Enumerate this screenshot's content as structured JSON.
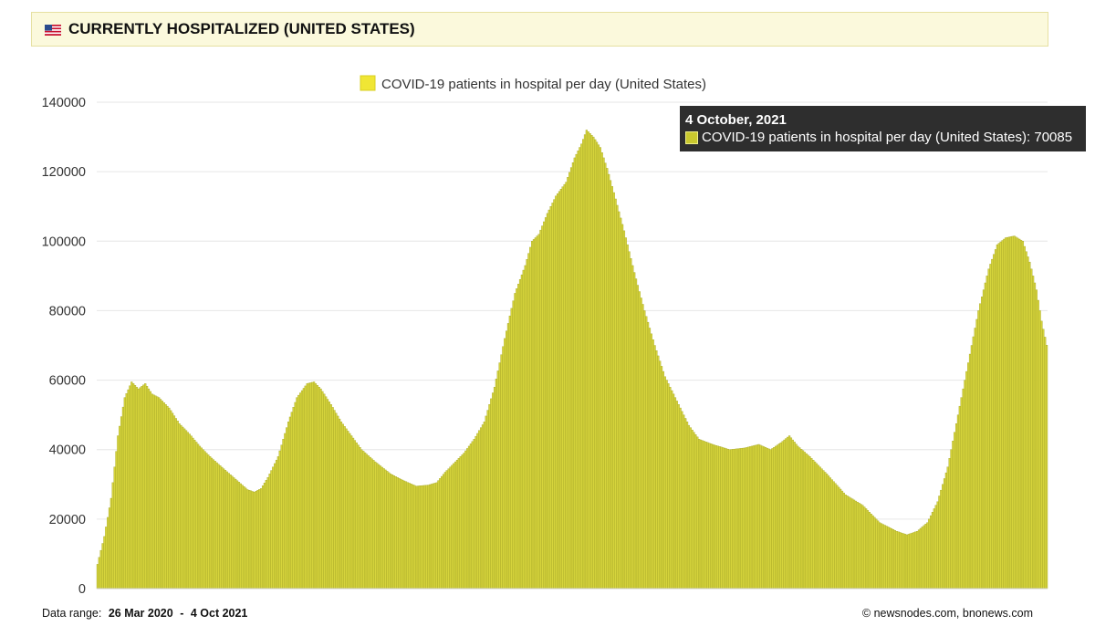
{
  "header": {
    "title": "CURRENTLY HOSPITALIZED (UNITED STATES)",
    "flag_icon": "us-flag-icon"
  },
  "tooltip": {
    "date": "4 October, 2021",
    "series": "COVID-19 patients in hospital per day (United States)",
    "value": "70085"
  },
  "footer": {
    "range_label": "Data range:",
    "range_start": "26 Mar 2020",
    "range_sep": "-",
    "range_end": "4 Oct 2021",
    "copyright": "©  newsnodes.com, bnonews.com"
  },
  "colors": {
    "bar_fill": "#d6d43c",
    "bar_stroke": "#9fa020",
    "legend_swatch": "#f0e634",
    "grid": "#e6e6e6",
    "tooltip_bg": "#2e2e2e"
  },
  "chart_data": {
    "type": "bar",
    "title": "",
    "legend": [
      "COVID-19 patients in hospital per day (United States)"
    ],
    "legend_position": "top-center",
    "grid": true,
    "xlabel": "",
    "ylabel": "",
    "x_start": "2020-03-26",
    "x_end": "2021-10-04",
    "ylim": [
      0,
      140000
    ],
    "yticks": [
      "0",
      "20000",
      "40000",
      "60000",
      "80000",
      "100000",
      "120000",
      "140000"
    ],
    "anchors": [
      [
        "2020-03-26",
        7000
      ],
      [
        "2020-03-30",
        15000
      ],
      [
        "2020-04-03",
        26000
      ],
      [
        "2020-04-07",
        44000
      ],
      [
        "2020-04-11",
        55000
      ],
      [
        "2020-04-15",
        59500
      ],
      [
        "2020-04-19",
        57500
      ],
      [
        "2020-04-23",
        59000
      ],
      [
        "2020-04-27",
        56000
      ],
      [
        "2020-05-01",
        55000
      ],
      [
        "2020-05-07",
        52000
      ],
      [
        "2020-05-13",
        47500
      ],
      [
        "2020-05-19",
        44500
      ],
      [
        "2020-05-25",
        41000
      ],
      [
        "2020-05-31",
        38000
      ],
      [
        "2020-06-08",
        34500
      ],
      [
        "2020-06-15",
        31500
      ],
      [
        "2020-06-22",
        28500
      ],
      [
        "2020-06-26",
        27800
      ],
      [
        "2020-06-30",
        28800
      ],
      [
        "2020-07-04",
        32000
      ],
      [
        "2020-07-10",
        38000
      ],
      [
        "2020-07-16",
        48000
      ],
      [
        "2020-07-21",
        55000
      ],
      [
        "2020-07-27",
        59000
      ],
      [
        "2020-07-31",
        59500
      ],
      [
        "2020-08-04",
        57500
      ],
      [
        "2020-08-10",
        53000
      ],
      [
        "2020-08-16",
        48000
      ],
      [
        "2020-08-22",
        44000
      ],
      [
        "2020-08-28",
        40000
      ],
      [
        "2020-09-05",
        36500
      ],
      [
        "2020-09-14",
        33000
      ],
      [
        "2020-09-22",
        31000
      ],
      [
        "2020-09-29",
        29500
      ],
      [
        "2020-10-06",
        29800
      ],
      [
        "2020-10-11",
        30500
      ],
      [
        "2020-10-16",
        33500
      ],
      [
        "2020-10-22",
        36500
      ],
      [
        "2020-10-27",
        39000
      ],
      [
        "2020-11-02",
        43000
      ],
      [
        "2020-11-08",
        48000
      ],
      [
        "2020-11-14",
        58000
      ],
      [
        "2020-11-20",
        72000
      ],
      [
        "2020-11-26",
        85000
      ],
      [
        "2020-12-02",
        93000
      ],
      [
        "2020-12-06",
        100000
      ],
      [
        "2020-12-10",
        102000
      ],
      [
        "2020-12-15",
        108000
      ],
      [
        "2020-12-20",
        113000
      ],
      [
        "2020-12-26",
        117000
      ],
      [
        "2020-12-31",
        124000
      ],
      [
        "2021-01-04",
        128000
      ],
      [
        "2021-01-07",
        132000
      ],
      [
        "2021-01-11",
        130000
      ],
      [
        "2021-01-15",
        127000
      ],
      [
        "2021-01-19",
        121000
      ],
      [
        "2021-01-23",
        114000
      ],
      [
        "2021-01-29",
        103000
      ],
      [
        "2021-02-04",
        91000
      ],
      [
        "2021-02-10",
        80000
      ],
      [
        "2021-02-16",
        70000
      ],
      [
        "2021-02-22",
        61000
      ],
      [
        "2021-03-01",
        54000
      ],
      [
        "2021-03-08",
        47000
      ],
      [
        "2021-03-14",
        43000
      ],
      [
        "2021-03-22",
        41500
      ],
      [
        "2021-04-01",
        40000
      ],
      [
        "2021-04-10",
        40500
      ],
      [
        "2021-04-18",
        41500
      ],
      [
        "2021-04-25",
        40000
      ],
      [
        "2021-05-01",
        42000
      ],
      [
        "2021-05-06",
        44000
      ],
      [
        "2021-05-11",
        41000
      ],
      [
        "2021-05-18",
        38000
      ],
      [
        "2021-05-28",
        33000
      ],
      [
        "2021-06-08",
        27000
      ],
      [
        "2021-06-18",
        24000
      ],
      [
        "2021-06-28",
        19000
      ],
      [
        "2021-07-08",
        16500
      ],
      [
        "2021-07-14",
        15500
      ],
      [
        "2021-07-20",
        16500
      ],
      [
        "2021-07-26",
        19000
      ],
      [
        "2021-08-01",
        25000
      ],
      [
        "2021-08-07",
        35000
      ],
      [
        "2021-08-13",
        50000
      ],
      [
        "2021-08-19",
        65000
      ],
      [
        "2021-08-25",
        80000
      ],
      [
        "2021-08-31",
        92000
      ],
      [
        "2021-09-05",
        99000
      ],
      [
        "2021-09-10",
        101000
      ],
      [
        "2021-09-15",
        101500
      ],
      [
        "2021-09-20",
        100000
      ],
      [
        "2021-09-24",
        94000
      ],
      [
        "2021-09-28",
        86000
      ],
      [
        "2021-10-01",
        77000
      ],
      [
        "2021-10-04",
        70085
      ]
    ]
  }
}
